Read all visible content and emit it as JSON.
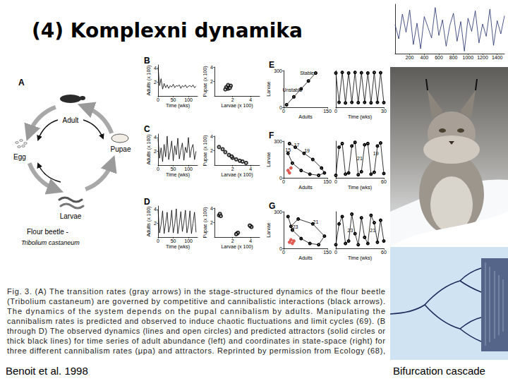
{
  "slide": {
    "title": "(4) Komplexni dynamika",
    "citation": "Benoit et al. 1998",
    "bifurcation_label": "Bifurcation cascade"
  },
  "figure": {
    "panel_letters": [
      "A",
      "B",
      "C",
      "D",
      "E",
      "F",
      "G"
    ],
    "lifecycle": {
      "adult": "Adult",
      "egg": "Egg",
      "pupae": "Pupae",
      "larvae": "Larvae",
      "species_common": "Flour beetle -",
      "species_latin": "Tribolium castaneum"
    },
    "caption_lines": [
      "Fig. 3. (A) The transition rates (gray arrows) in the stage-structured dynamics of the flour beetle",
      "(Tribolium castaneum) are governed by competitive and cannibalistic interactions (black arrows).",
      "The dynamics of the system depends on the pupal cannibalism by adults. Manipulating the",
      "cannibalism rates is predicted and observed to induce chaotic fluctuations and limit cycles (69). (B",
      "through D) The observed dynamics (lines and open circles) and predicted attractors (solid circles or",
      "thick black lines) for time series of adult abundance (left) and coordinates in state-space (right) for",
      "three different cannibalism rates (μpa) and attractors. Reprinted by permission from Ecology (68),"
    ]
  },
  "chart_data": [
    {
      "type": "line",
      "x": [
        0,
        50,
        100,
        150,
        200,
        250,
        300,
        350,
        400,
        450,
        500,
        550,
        600,
        650,
        700,
        750,
        800,
        850,
        900,
        950,
        1000,
        1050,
        1100,
        1150,
        1200,
        1250,
        1300,
        1350,
        1400,
        1450,
        1500
      ],
      "series": [
        {
          "color": "#1f2d6b",
          "marker": "none",
          "line_style": "solid",
          "values": [
            0.5,
            -1.2,
            1.8,
            -0.4,
            2.3,
            -1.9,
            0.7,
            -2.4,
            1.5,
            0.2,
            -1.1,
            2.6,
            -0.8,
            1.1,
            -2.1,
            0.4,
            1.9,
            -1.5,
            0.9,
            -2.7,
            1.3,
            -0.3,
            2.2,
            -1.7,
            0.6,
            -0.9,
            2.4,
            -2.0,
            1.0,
            -0.6,
            1.6
          ]
        }
      ],
      "xlim": [
        0,
        1500
      ],
      "ylim": [
        -3,
        3
      ],
      "xticks": [
        200,
        400,
        600,
        800,
        1000,
        1200,
        1400
      ],
      "tick_labels": "x"
    },
    {
      "type": "line",
      "xlabel": "Time (wks)",
      "ylabel": "Adults (x 100)",
      "x": [
        0,
        5,
        10,
        15,
        20,
        25,
        30,
        35,
        40,
        45,
        50,
        55,
        60,
        65,
        70,
        75,
        80,
        85,
        90,
        95,
        100,
        105,
        110,
        115,
        120,
        125
      ],
      "series": [
        {
          "color": "#000000",
          "marker": "none",
          "line_style": "solid",
          "values": [
            4.2,
            1.5,
            2.5,
            1.0,
            1.8,
            1.2,
            1.6,
            1.1,
            1.5,
            1.3,
            1.7,
            1.2,
            1.5,
            1.4,
            1.6,
            1.1,
            1.5,
            1.3,
            1.6,
            1.2,
            1.4,
            1.5,
            1.3,
            1.6,
            1.2,
            1.4
          ]
        }
      ],
      "xlim": [
        0,
        130
      ],
      "ylim": [
        0,
        4.5
      ],
      "xticks": [
        0,
        50,
        100
      ],
      "yticks": [
        2,
        4
      ]
    },
    {
      "type": "scatter",
      "xlabel": "Larvae (x 100)",
      "ylabel": "Pupae (x 100)",
      "x": [
        1.4,
        1.6,
        1.5,
        1.8,
        1.3,
        1.7,
        1.5,
        1.2
      ],
      "series": [
        {
          "color": "#000000",
          "marker": "open_circle",
          "values": [
            1.1,
            1.3,
            1.0,
            1.4,
            1.2,
            1.1,
            1.5,
            0.9
          ]
        }
      ],
      "xlim": [
        0,
        5
      ],
      "ylim": [
        0,
        4
      ],
      "xticks": [
        2,
        4
      ],
      "yticks": [
        2,
        4
      ]
    },
    {
      "type": "line",
      "xlabel": "Time (wks)",
      "ylabel": "Adults (x 100)",
      "x": [
        0,
        5,
        10,
        15,
        20,
        25,
        30,
        35,
        40,
        45,
        50,
        55,
        60,
        65,
        70,
        75,
        80,
        85,
        90,
        95,
        100,
        105,
        110,
        115,
        120,
        125
      ],
      "series": [
        {
          "color": "#000000",
          "marker": "none",
          "line_style": "solid",
          "values": [
            3.8,
            1.0,
            2.5,
            0.5,
            3.0,
            1.2,
            4.2,
            0.8,
            2.0,
            3.5,
            0.6,
            2.8,
            1.5,
            3.9,
            0.9,
            2.2,
            3.2,
            0.7,
            2.6,
            1.8,
            4.0,
            1.1,
            2.4,
            3.0,
            0.8,
            2.0
          ]
        }
      ],
      "xlim": [
        0,
        130
      ],
      "ylim": [
        0,
        4.5
      ],
      "xticks": [
        0,
        50,
        100
      ],
      "yticks": [
        2,
        4
      ]
    },
    {
      "type": "scatter",
      "xlabel": "Larvae (x 100)",
      "ylabel": "Pupae (x 100)",
      "x": [
        0.5,
        1.2,
        2.0,
        2.8,
        3.5,
        1.6,
        2.4,
        0.9,
        3.1,
        1.9
      ],
      "series": [
        {
          "color": "#000000",
          "marker": "open_circle",
          "values": [
            2.5,
            1.8,
            1.0,
            0.6,
            0.3,
            1.4,
            0.8,
            2.2,
            0.5,
            1.2
          ]
        }
      ],
      "xlim": [
        0,
        5
      ],
      "ylim": [
        0,
        4
      ],
      "xticks": [
        2,
        4
      ],
      "yticks": [
        2,
        4
      ]
    },
    {
      "type": "line",
      "xlabel": "Time (wks)",
      "ylabel": "Adults (x 100)",
      "x": [
        0,
        5,
        10,
        15,
        20,
        25,
        30,
        35,
        40,
        45,
        50,
        55,
        60,
        65,
        70,
        75,
        80,
        85,
        90,
        95,
        100,
        105,
        110,
        115,
        120,
        125
      ],
      "series": [
        {
          "color": "#000000",
          "marker": "none",
          "line_style": "solid",
          "values": [
            4.0,
            0.6,
            1.8,
            3.8,
            0.5,
            2.0,
            3.6,
            0.7,
            1.7,
            3.9,
            0.6,
            1.9,
            4.1,
            0.5,
            1.8,
            3.7,
            0.8,
            2.1,
            3.9,
            0.6,
            1.7,
            3.8,
            0.5,
            2.0,
            3.6,
            0.7
          ]
        }
      ],
      "xlim": [
        0,
        130
      ],
      "ylim": [
        0,
        4.5
      ],
      "xticks": [
        0,
        50,
        100
      ],
      "yticks": [
        2,
        4
      ]
    },
    {
      "type": "scatter",
      "xlabel": "Larvae (x 100)",
      "ylabel": "Pupae (x 100)",
      "x": [
        0.5,
        0.6,
        2.5,
        2.6,
        4.0,
        4.1,
        0.7,
        2.4,
        3.9
      ],
      "series": [
        {
          "color": "#000000",
          "marker": "open_circle",
          "values": [
            3.0,
            3.2,
            0.5,
            0.6,
            1.5,
            1.4,
            2.9,
            0.4,
            1.6
          ]
        }
      ],
      "xlim": [
        0,
        5
      ],
      "ylim": [
        0,
        4
      ],
      "xticks": [
        2,
        4
      ],
      "yticks": [
        2,
        4
      ]
    },
    {
      "type": "line",
      "xlabel": "Adults",
      "ylabel": "Larvae",
      "x": [
        10,
        35,
        60,
        85,
        110
      ],
      "series": [
        {
          "color": "#000000",
          "marker": "open_circle",
          "line_style": "solid",
          "values": [
            20,
            85,
            150,
            215,
            280
          ]
        }
      ],
      "annotations": [
        {
          "text": "Stable",
          "x": 80,
          "y": 280
        },
        {
          "text": "Unstable",
          "x": 30,
          "y": 140
        }
      ],
      "xlim": [
        0,
        150
      ],
      "ylim": [
        0,
        300
      ],
      "xticks": [
        0,
        150
      ],
      "yticks": [
        0,
        300
      ]
    },
    {
      "type": "line",
      "xlabel": "Time (wks)",
      "x": [
        0,
        2,
        4,
        6,
        8,
        10,
        12,
        14,
        16,
        18,
        20,
        22,
        24,
        26,
        28,
        30
      ],
      "series": [
        {
          "color": "#000000",
          "marker": "open_circle",
          "line_style": "solid",
          "values": [
            280,
            40,
            285,
            35,
            280,
            40,
            285,
            38,
            282,
            40,
            280,
            36,
            284,
            40,
            282,
            38
          ]
        }
      ],
      "xlim": [
        0,
        30
      ],
      "ylim": [
        0,
        300
      ],
      "xticks": [
        0,
        30
      ],
      "tick_labels": "x"
    },
    {
      "type": "line",
      "xlabel": "Adults",
      "ylabel": "Larvae",
      "x": [
        20,
        40,
        70,
        100,
        130,
        140,
        120,
        90,
        60,
        30,
        15
      ],
      "series": [
        {
          "color": "#000000",
          "marker": "open_circle",
          "line_style": "solid",
          "values": [
            280,
            250,
            200,
            150,
            80,
            40,
            20,
            30,
            60,
            120,
            200
          ]
        },
        {
          "type": "scatter",
          "color": "#d9342b",
          "marker": "filled_circle",
          "x": [
            15,
            20,
            25
          ],
          "values": [
            60,
            40,
            80
          ]
        }
      ],
      "annotations": [
        {
          "text": "17",
          "x": 45,
          "y": 270
        },
        {
          "text": "19",
          "x": 80,
          "y": 225
        },
        {
          "text": "15",
          "x": 15,
          "y": 230
        }
      ],
      "xlim": [
        0,
        150
      ],
      "ylim": [
        0,
        300
      ],
      "xticks": [
        0,
        150
      ],
      "yticks": [
        0,
        300
      ]
    },
    {
      "type": "line",
      "xlabel": "Time (wks)",
      "x": [
        0,
        4,
        8,
        12,
        16,
        20,
        24,
        28,
        32,
        36,
        40,
        44,
        48,
        52,
        56,
        60
      ],
      "series": [
        {
          "color": "#000000",
          "marker": "open_circle",
          "line_style": "solid",
          "values": [
            20,
            250,
            280,
            30,
            40,
            260,
            290,
            25,
            50,
            270,
            280,
            30,
            45,
            260,
            285,
            35
          ]
        }
      ],
      "annotations": [
        {
          "text": "19",
          "x": 50,
          "y": 200
        },
        {
          "text": "21",
          "x": 30,
          "y": 160
        }
      ],
      "xlim": [
        0,
        60
      ],
      "ylim": [
        0,
        300
      ],
      "xticks": [
        0,
        60
      ],
      "tick_labels": "x"
    },
    {
      "type": "line",
      "xlabel": "Adults",
      "ylabel": "Larvae",
      "x": [
        15,
        30,
        60,
        90,
        120,
        140,
        100,
        50,
        25
      ],
      "series": [
        {
          "color": "#000000",
          "marker": "open_circle",
          "line_style": "solid",
          "values": [
            260,
            150,
            80,
            40,
            30,
            100,
            200,
            240,
            180
          ]
        },
        {
          "type": "scatter",
          "color": "#d9342b",
          "marker": "filled_circle",
          "x": [
            20,
            25,
            30,
            35
          ],
          "values": [
            50,
            70,
            40,
            60
          ]
        }
      ],
      "annotations": [
        {
          "text": "23",
          "x": 40,
          "y": 175
        },
        {
          "text": "21",
          "x": 110,
          "y": 215
        }
      ],
      "xlim": [
        0,
        150
      ],
      "ylim": [
        0,
        300
      ],
      "xticks": [
        0,
        150
      ],
      "yticks": [
        0,
        300
      ]
    },
    {
      "type": "line",
      "xlabel": "Time (wks)",
      "x": [
        0,
        4,
        8,
        12,
        16,
        20,
        24,
        28,
        32,
        36,
        40,
        44,
        48,
        52,
        56,
        60
      ],
      "series": [
        {
          "color": "#000000",
          "marker": "open_circle",
          "line_style": "solid",
          "values": [
            30,
            200,
            260,
            40,
            60,
            280,
            120,
            30,
            250,
            90,
            40,
            270,
            210,
            50,
            230,
            60
          ]
        }
      ],
      "annotations": [
        {
          "text": "21",
          "x": 46,
          "y": 150
        },
        {
          "text": "23",
          "x": 18,
          "y": 150
        }
      ],
      "xlim": [
        0,
        60
      ],
      "ylim": [
        0,
        300
      ],
      "xticks": [
        0,
        60
      ],
      "tick_labels": "x"
    }
  ]
}
